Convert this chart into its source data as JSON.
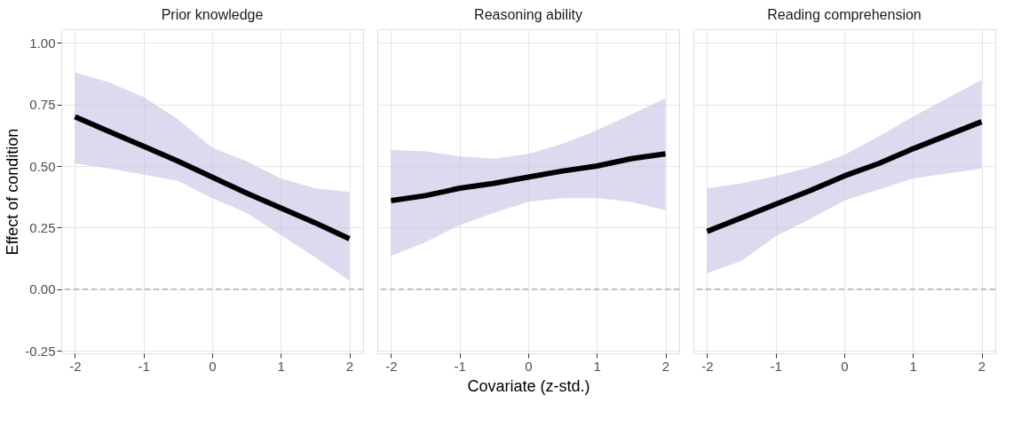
{
  "chart_data": [
    {
      "type": "line",
      "title": "Prior knowledge",
      "ylabel": "Effect of condition",
      "xlim": [
        -2.2,
        2.2
      ],
      "xticks": [
        -2,
        -1,
        0,
        1,
        2
      ],
      "ylim": [
        -0.26,
        1.055
      ],
      "yticks": [
        {
          "value": -0.25,
          "label": "-0.25"
        },
        {
          "value": 0,
          "label": "0.00"
        },
        {
          "value": 0.25,
          "label": "0.25"
        },
        {
          "value": 0.5,
          "label": "0.50"
        },
        {
          "value": 0.75,
          "label": "0.75"
        },
        {
          "value": 1,
          "label": "1.00"
        }
      ],
      "grid": true,
      "line_style": "solid",
      "marker": "none",
      "series": [
        {
          "color": "#000000",
          "x": [
            -2,
            -1.5,
            -1,
            -0.5,
            0,
            0.5,
            1,
            1.5,
            2
          ],
          "values": [
            0.7,
            0.64,
            0.58,
            0.52,
            0.455,
            0.39,
            0.33,
            0.27,
            0.205
          ],
          "lower": [
            0.51,
            0.49,
            0.465,
            0.44,
            0.37,
            0.31,
            0.22,
            0.13,
            0.035
          ],
          "upper": [
            0.88,
            0.84,
            0.78,
            0.69,
            0.575,
            0.52,
            0.45,
            0.41,
            0.395
          ]
        }
      ],
      "ref_lines": [
        {
          "axis": "y",
          "value": 0,
          "color": "#b3b3b3",
          "line_style": "dashed"
        }
      ]
    },
    {
      "type": "line",
      "title": "Reasoning ability",
      "xlabel": "Covariate (z-std.)",
      "xlim": [
        -2.2,
        2.2
      ],
      "xticks": [
        -2,
        -1,
        0,
        1,
        2
      ],
      "ylim": [
        -0.26,
        1.055
      ],
      "yticks": [
        -0.25,
        0,
        0.25,
        0.5,
        0.75,
        1
      ],
      "grid": true,
      "tick_labels": "x",
      "line_style": "solid",
      "marker": "none",
      "series": [
        {
          "color": "#000000",
          "x": [
            -2,
            -1.5,
            -1,
            -0.5,
            0,
            0.5,
            1,
            1.5,
            2
          ],
          "values": [
            0.36,
            0.38,
            0.41,
            0.43,
            0.455,
            0.48,
            0.5,
            0.53,
            0.55
          ],
          "lower": [
            0.135,
            0.19,
            0.26,
            0.31,
            0.355,
            0.37,
            0.37,
            0.355,
            0.32
          ],
          "upper": [
            0.565,
            0.56,
            0.54,
            0.53,
            0.55,
            0.59,
            0.645,
            0.71,
            0.775
          ]
        }
      ],
      "ref_lines": [
        {
          "axis": "y",
          "value": 0,
          "color": "#b3b3b3",
          "line_style": "dashed"
        }
      ]
    },
    {
      "type": "line",
      "title": "Reading comprehension",
      "xlim": [
        -2.2,
        2.2
      ],
      "xticks": [
        -2,
        -1,
        0,
        1,
        2
      ],
      "ylim": [
        -0.26,
        1.055
      ],
      "yticks": [
        -0.25,
        0,
        0.25,
        0.5,
        0.75,
        1
      ],
      "grid": true,
      "tick_labels": "x",
      "line_style": "solid",
      "marker": "none",
      "series": [
        {
          "color": "#000000",
          "x": [
            -2,
            -1.5,
            -1,
            -0.5,
            0,
            0.5,
            1,
            1.5,
            2
          ],
          "values": [
            0.235,
            0.29,
            0.345,
            0.4,
            0.46,
            0.51,
            0.57,
            0.625,
            0.68
          ],
          "lower": [
            0.065,
            0.115,
            0.215,
            0.285,
            0.36,
            0.405,
            0.45,
            0.47,
            0.49
          ],
          "upper": [
            0.41,
            0.43,
            0.46,
            0.495,
            0.545,
            0.62,
            0.7,
            0.775,
            0.85
          ]
        }
      ],
      "ref_lines": [
        {
          "axis": "y",
          "value": 0,
          "color": "#b3b3b3",
          "line_style": "dashed"
        }
      ]
    }
  ]
}
